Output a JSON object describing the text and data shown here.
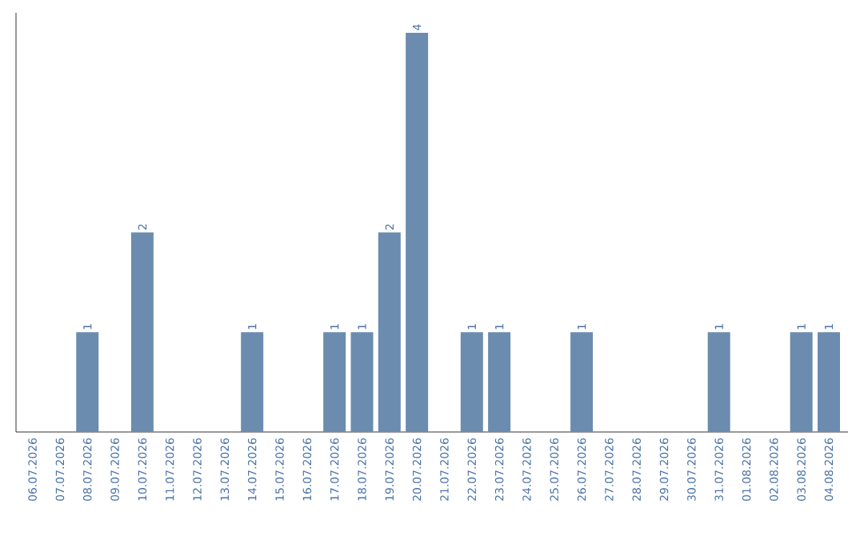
{
  "chart_data": {
    "type": "bar",
    "categories": [
      "06.07.2026",
      "07.07.2026",
      "08.07.2026",
      "09.07.2026",
      "10.07.2026",
      "11.07.2026",
      "12.07.2026",
      "13.07.2026",
      "14.07.2026",
      "15.07.2026",
      "16.07.2026",
      "17.07.2026",
      "18.07.2026",
      "19.07.2026",
      "20.07.2026",
      "21.07.2026",
      "22.07.2026",
      "23.07.2026",
      "24.07.2026",
      "25.07.2026",
      "26.07.2026",
      "27.07.2026",
      "28.07.2026",
      "29.07.2026",
      "30.07.2026",
      "31.07.2026",
      "01.08.2026",
      "02.08.2026",
      "03.08.2026",
      "04.08.2026"
    ],
    "values": [
      0,
      0,
      1,
      0,
      2,
      0,
      0,
      0,
      1,
      0,
      0,
      1,
      1,
      2,
      4,
      0,
      1,
      1,
      0,
      0,
      1,
      0,
      0,
      0,
      0,
      1,
      0,
      0,
      1,
      1
    ],
    "value_labels": [
      null,
      null,
      "1",
      null,
      "2",
      null,
      null,
      null,
      "1",
      null,
      null,
      "1",
      "1",
      "2",
      "4",
      null,
      "1",
      "1",
      null,
      null,
      "1",
      null,
      null,
      null,
      null,
      "1",
      null,
      null,
      "1",
      "1"
    ],
    "color": "#6b8cae"
  }
}
